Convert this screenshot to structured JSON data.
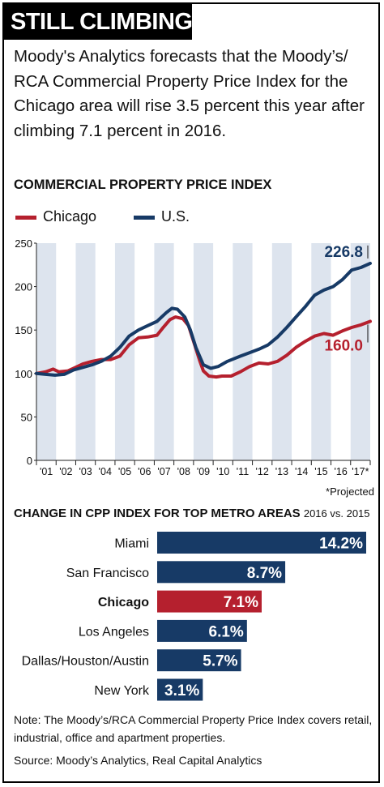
{
  "banner": {
    "title": "STILL CLIMBING"
  },
  "intro": "Moody's Analytics forecasts that the Moody’s/ RCA Commercial Property Price Index for the Chicago area will rise 3.5 percent this year after climbing 7.1 percent in 2016.",
  "colors": {
    "chicago": "#b5202e",
    "us": "#173a66",
    "stripe": "#dde4ee"
  },
  "chart_data": [
    {
      "type": "line",
      "title": "COMMERCIAL PROPERTY PRICE INDEX",
      "ylim": [
        0,
        250
      ],
      "yticks": [
        0,
        50,
        100,
        150,
        200,
        250
      ],
      "xlim": [
        2000.0,
        2018.0
      ],
      "xtick_labels": [
        "'01",
        "'02",
        "'03",
        "'04",
        "'05",
        "'06",
        "'07",
        "'08",
        "'09",
        "'10",
        "'11",
        "'12",
        "'13",
        "'14",
        "'15",
        "'16",
        "'17*"
      ],
      "grid": false,
      "legend": "top-left",
      "footnote": "*Projected",
      "series": [
        {
          "name": "Chicago",
          "end_label": "160.0",
          "points": [
            [
              2000.0,
              100
            ],
            [
              2000.5,
              102
            ],
            [
              2000.9,
              105
            ],
            [
              2001.2,
              102
            ],
            [
              2001.7,
              103
            ],
            [
              2002.0,
              106
            ],
            [
              2002.5,
              111
            ],
            [
              2003.0,
              114
            ],
            [
              2003.5,
              116
            ],
            [
              2004.0,
              116
            ],
            [
              2004.5,
              120
            ],
            [
              2005.0,
              133
            ],
            [
              2005.5,
              141
            ],
            [
              2006.0,
              142
            ],
            [
              2006.5,
              144
            ],
            [
              2006.8,
              152
            ],
            [
              2007.2,
              162
            ],
            [
              2007.5,
              165
            ],
            [
              2007.9,
              163
            ],
            [
              2008.2,
              155
            ],
            [
              2008.5,
              135
            ],
            [
              2008.8,
              115
            ],
            [
              2009.0,
              103
            ],
            [
              2009.3,
              97
            ],
            [
              2009.7,
              96
            ],
            [
              2010.0,
              97
            ],
            [
              2010.5,
              97
            ],
            [
              2011.0,
              102
            ],
            [
              2011.5,
              108
            ],
            [
              2012.0,
              112
            ],
            [
              2012.5,
              111
            ],
            [
              2013.0,
              114
            ],
            [
              2013.5,
              121
            ],
            [
              2014.0,
              130
            ],
            [
              2014.5,
              137
            ],
            [
              2015.0,
              143
            ],
            [
              2015.5,
              146
            ],
            [
              2016.0,
              144
            ],
            [
              2016.5,
              149
            ],
            [
              2017.0,
              153
            ],
            [
              2017.5,
              156
            ],
            [
              2018.0,
              160
            ]
          ]
        },
        {
          "name": "U.S.",
          "end_label": "226.8",
          "points": [
            [
              2000.0,
              100
            ],
            [
              2000.5,
              99
            ],
            [
              2001.0,
              98
            ],
            [
              2001.5,
              99
            ],
            [
              2002.0,
              104
            ],
            [
              2002.5,
              107
            ],
            [
              2003.0,
              110
            ],
            [
              2003.5,
              114
            ],
            [
              2004.0,
              120
            ],
            [
              2004.5,
              130
            ],
            [
              2005.0,
              143
            ],
            [
              2005.5,
              150
            ],
            [
              2006.0,
              155
            ],
            [
              2006.5,
              160
            ],
            [
              2007.0,
              170
            ],
            [
              2007.3,
              175
            ],
            [
              2007.6,
              174
            ],
            [
              2008.0,
              165
            ],
            [
              2008.3,
              150
            ],
            [
              2008.6,
              130
            ],
            [
              2009.0,
              110
            ],
            [
              2009.4,
              106
            ],
            [
              2009.8,
              108
            ],
            [
              2010.3,
              114
            ],
            [
              2011.0,
              120
            ],
            [
              2011.5,
              124
            ],
            [
              2012.0,
              128
            ],
            [
              2012.5,
              133
            ],
            [
              2013.0,
              142
            ],
            [
              2013.5,
              153
            ],
            [
              2014.0,
              165
            ],
            [
              2014.5,
              177
            ],
            [
              2015.0,
              190
            ],
            [
              2015.5,
              196
            ],
            [
              2016.0,
              200
            ],
            [
              2016.5,
              208
            ],
            [
              2017.0,
              219
            ],
            [
              2017.5,
              222
            ],
            [
              2018.0,
              226.8
            ]
          ]
        }
      ]
    },
    {
      "type": "bar",
      "orientation": "horizontal",
      "title": "CHANGE IN CPP INDEX FOR TOP METRO AREAS",
      "subtitle": "2016 vs. 2015",
      "categories": [
        "Miami",
        "San Francisco",
        "Chicago",
        "Los Angeles",
        "Dallas/Houston/Austin",
        "New York"
      ],
      "values": [
        14.2,
        8.7,
        7.1,
        6.1,
        5.7,
        3.1
      ],
      "value_labels": [
        "14.2%",
        "8.7%",
        "7.1%",
        "6.1%",
        "5.7%",
        "3.1%"
      ],
      "highlight": "Chicago",
      "xlim": [
        0,
        14.2
      ]
    }
  ],
  "note": "Note: The Moody’s/RCA Commercial Property Price Index covers retail, industrial, office and apartment properties.",
  "source": "Source: Moody’s Analytics, Real Capital Analytics"
}
